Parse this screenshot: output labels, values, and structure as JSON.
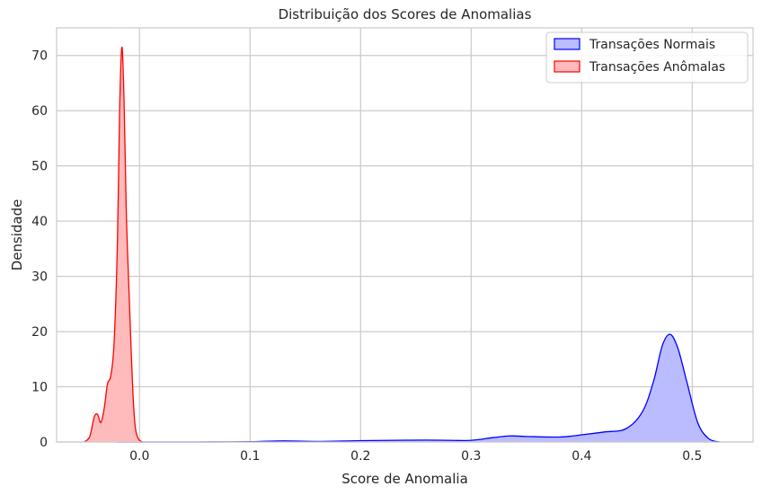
{
  "chart_data": {
    "type": "area",
    "title": "Distribuição dos Scores de Anomalias",
    "xlabel": "Score de Anomalia",
    "ylabel": "Densidade",
    "xlim": [
      -0.075,
      0.555
    ],
    "ylim": [
      0,
      75
    ],
    "x_ticks": [
      0.0,
      0.1,
      0.2,
      0.3,
      0.4,
      0.5
    ],
    "x_tick_labels": [
      "0.0",
      "0.1",
      "0.2",
      "0.3",
      "0.4",
      "0.5"
    ],
    "y_ticks": [
      0,
      10,
      20,
      30,
      40,
      50,
      60,
      70
    ],
    "y_tick_labels": [
      "0",
      "10",
      "20",
      "30",
      "40",
      "50",
      "60",
      "70"
    ],
    "grid": true,
    "legend_position": "top-right",
    "series": [
      {
        "name": "Transações Normais",
        "color": "#0000ff",
        "fill": "#bbbbff",
        "x": [
          -0.02,
          0.0,
          0.05,
          0.1,
          0.13,
          0.16,
          0.2,
          0.23,
          0.26,
          0.28,
          0.3,
          0.32,
          0.335,
          0.35,
          0.38,
          0.4,
          0.42,
          0.44,
          0.455,
          0.465,
          0.473,
          0.48,
          0.487,
          0.495,
          0.505,
          0.515,
          0.525
        ],
        "y": [
          0.0,
          0.0,
          0.0,
          0.05,
          0.2,
          0.1,
          0.25,
          0.3,
          0.35,
          0.3,
          0.3,
          0.8,
          1.1,
          1.0,
          0.9,
          1.3,
          1.8,
          2.4,
          5.5,
          11.0,
          17.5,
          19.5,
          17.0,
          11.0,
          3.5,
          0.6,
          0.0
        ]
      },
      {
        "name": "Transações Anômalas",
        "color": "#ff0000",
        "fill": "#ffbbbb",
        "x": [
          -0.05,
          -0.045,
          -0.041,
          -0.038,
          -0.035,
          -0.032,
          -0.029,
          -0.026,
          -0.023,
          -0.02,
          -0.018,
          -0.016,
          -0.014,
          -0.012,
          -0.01,
          -0.008,
          -0.006,
          -0.004,
          -0.002,
          0.0,
          0.003
        ],
        "y": [
          0.0,
          1.0,
          4.5,
          5.0,
          3.5,
          6.0,
          10.5,
          12.0,
          18.0,
          36.0,
          60.0,
          71.5,
          62.0,
          42.0,
          30.0,
          19.0,
          9.0,
          3.0,
          1.0,
          0.3,
          0.0
        ]
      }
    ]
  }
}
